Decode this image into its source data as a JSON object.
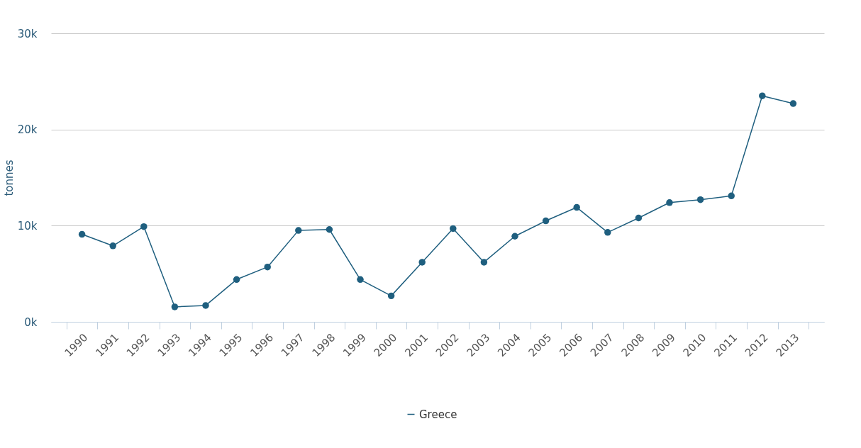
{
  "chart_data": {
    "type": "line",
    "ylabel": "tonnes",
    "categories": [
      "1990",
      "1991",
      "1992",
      "1993",
      "1994",
      "1995",
      "1996",
      "1997",
      "1998",
      "1999",
      "2000",
      "2001",
      "2002",
      "2003",
      "2004",
      "2005",
      "2006",
      "2007",
      "2008",
      "2009",
      "2010",
      "2011",
      "2012",
      "2013"
    ],
    "series": [
      {
        "name": "Greece",
        "color": "#1f5f7f",
        "values": [
          9100,
          7900,
          9900,
          1550,
          1700,
          4400,
          5700,
          9500,
          9600,
          4400,
          2700,
          6200,
          9700,
          6200,
          8900,
          10500,
          11900,
          9300,
          10800,
          12400,
          12700,
          13100,
          23500,
          22700
        ]
      }
    ],
    "ylim": [
      0,
      30000
    ],
    "yticks": [
      {
        "value": 0,
        "label": "0k"
      },
      {
        "value": 10000,
        "label": "10k"
      },
      {
        "value": 20000,
        "label": "20k"
      },
      {
        "value": 30000,
        "label": "30k"
      }
    ],
    "grid": "y",
    "legend": "bottom",
    "marker": "circle",
    "line_style": "solid"
  }
}
